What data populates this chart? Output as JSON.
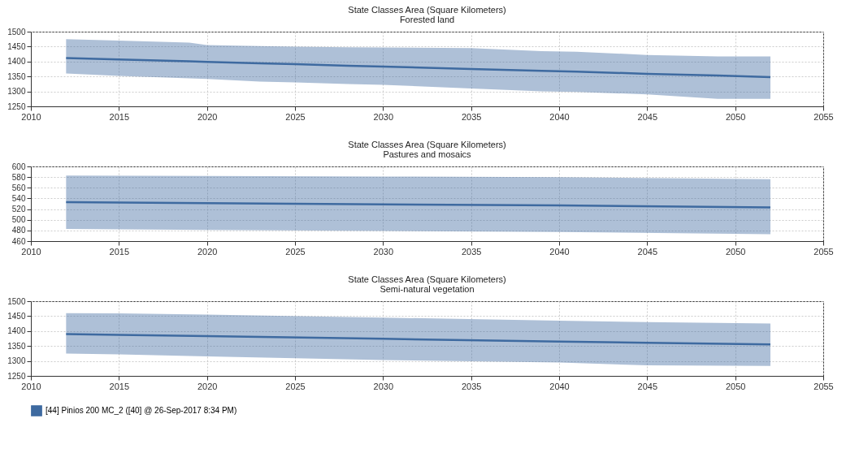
{
  "chart_data": [
    {
      "type": "line",
      "title": "State Classes Area (Square Kilometers)",
      "subtitle": "Forested land",
      "xlim": [
        2010,
        2055
      ],
      "xticks": [
        2010,
        2015,
        2020,
        2025,
        2030,
        2035,
        2040,
        2045,
        2050,
        2055
      ],
      "ylim": [
        1250,
        1500
      ],
      "yticks": [
        1250,
        1300,
        1350,
        1400,
        1450,
        1500
      ],
      "grid": true,
      "x": [
        2012,
        2015,
        2019,
        2020,
        2023,
        2025,
        2028,
        2030,
        2035,
        2039,
        2041,
        2045,
        2049,
        2052
      ],
      "series": [
        {
          "name": "[44] Pinios 200 MC_2 ([40] @ 26-Sep-2017 8:34 PM)",
          "color": "#3e6aa0",
          "values": [
            1412,
            1407,
            1401,
            1399,
            1394,
            1391,
            1386,
            1383,
            1375,
            1369,
            1366,
            1359,
            1353,
            1348
          ],
          "upper": [
            1475,
            1470,
            1463,
            1455,
            1452,
            1450,
            1448,
            1447,
            1445,
            1435,
            1433,
            1422,
            1417,
            1417
          ],
          "lower": [
            1360,
            1352,
            1344,
            1342,
            1333,
            1330,
            1325,
            1322,
            1310,
            1300,
            1298,
            1290,
            1275,
            1275
          ]
        }
      ]
    },
    {
      "type": "line",
      "title": "State Classes Area (Square Kilometers)",
      "subtitle": "Pastures and mosaics",
      "xlim": [
        2010,
        2055
      ],
      "xticks": [
        2010,
        2015,
        2020,
        2025,
        2030,
        2035,
        2040,
        2045,
        2050,
        2055
      ],
      "ylim": [
        460,
        600
      ],
      "yticks": [
        460,
        480,
        500,
        520,
        540,
        560,
        580,
        600
      ],
      "grid": true,
      "x": [
        2012,
        2020,
        2030,
        2040,
        2052
      ],
      "series": [
        {
          "name": "[44] Pinios 200 MC_2 ([40] @ 26-Sep-2017 8:34 PM)",
          "color": "#3e6aa0",
          "values": [
            533,
            531,
            529,
            527,
            523
          ],
          "upper": [
            583,
            582,
            581,
            580,
            576
          ],
          "lower": [
            483,
            481,
            479,
            477,
            473
          ]
        }
      ]
    },
    {
      "type": "line",
      "title": "State Classes Area (Square Kilometers)",
      "subtitle": "Semi-natural vegetation",
      "xlim": [
        2010,
        2055
      ],
      "xticks": [
        2010,
        2015,
        2020,
        2025,
        2030,
        2035,
        2040,
        2045,
        2050,
        2055
      ],
      "ylim": [
        1250,
        1500
      ],
      "yticks": [
        1250,
        1300,
        1350,
        1400,
        1450,
        1500
      ],
      "grid": true,
      "legend": "bottom left",
      "x": [
        2012,
        2015,
        2020,
        2030,
        2040,
        2045,
        2052
      ],
      "series": [
        {
          "name": "[44] Pinios 200 MC_2 ([40] @ 26-Sep-2017 8:34 PM)",
          "color": "#3e6aa0",
          "values": [
            1390,
            1387,
            1383,
            1374,
            1365,
            1361,
            1355
          ],
          "upper": [
            1460,
            1459,
            1455,
            1445,
            1435,
            1430,
            1425
          ],
          "lower": [
            1325,
            1322,
            1315,
            1303,
            1295,
            1285,
            1283
          ]
        }
      ]
    }
  ]
}
